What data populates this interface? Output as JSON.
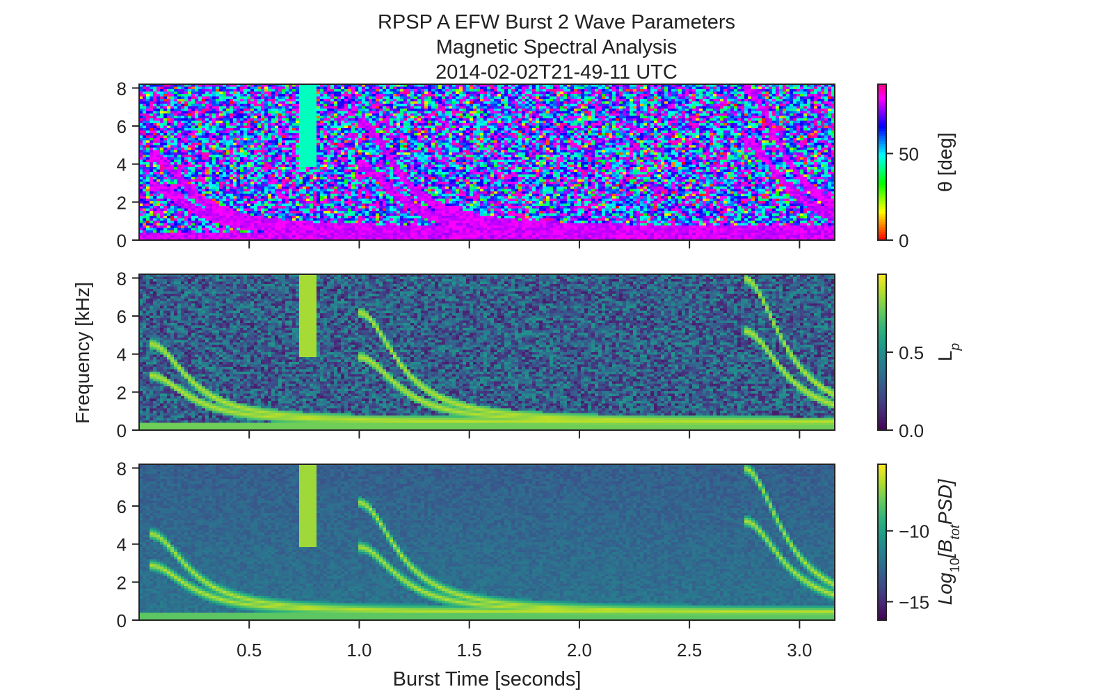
{
  "figure": {
    "title_lines": [
      "RPSP A EFW Burst 2 Wave Parameters",
      "Magnetic Spectral Analysis",
      "2014-02-02T21-49-11 UTC"
    ],
    "shared_ylabel": "Frequency [kHz]",
    "shared_xlabel": "Burst Time [seconds]"
  },
  "chart_data": [
    {
      "type": "heatmap",
      "name": "theta",
      "colormap": "hsv",
      "colorbar_label": "θ [deg]",
      "colorbar_ticks": [
        "0",
        "50"
      ],
      "colorbar_tick_values": [
        0,
        50
      ],
      "colorbar_range": [
        0,
        90
      ],
      "x_range": [
        0.0,
        3.16
      ],
      "ylim": [
        0,
        8.2
      ],
      "yticks": [
        "0",
        "2",
        "4",
        "6",
        "8"
      ],
      "xticks": [
        "0.5",
        "1.0",
        "1.5",
        "2.0",
        "2.5",
        "3.0"
      ],
      "xtick_labels_visible": false
    },
    {
      "type": "heatmap",
      "name": "Lp",
      "colormap": "viridis",
      "colorbar_label": "L",
      "colorbar_label_sub": "p",
      "colorbar_ticks": [
        "0.0",
        "0.5"
      ],
      "colorbar_tick_values": [
        0.0,
        0.5
      ],
      "colorbar_range": [
        0,
        1
      ],
      "x_range": [
        0.0,
        3.16
      ],
      "ylim": [
        0,
        8.2
      ],
      "yticks": [
        "0",
        "2",
        "4",
        "6",
        "8"
      ],
      "xticks": [
        "0.5",
        "1.0",
        "1.5",
        "2.0",
        "2.5",
        "3.0"
      ],
      "xtick_labels_visible": false
    },
    {
      "type": "heatmap",
      "name": "psd",
      "colormap": "viridis",
      "colorbar_label_parts": [
        "Log",
        "10",
        "[B",
        "tot",
        "PSD]"
      ],
      "colorbar_ticks": [
        "−10",
        "−15"
      ],
      "colorbar_tick_values": [
        -10,
        -15
      ],
      "colorbar_range": [
        -16.3,
        -5.3
      ],
      "x_range": [
        0.0,
        3.16
      ],
      "ylim": [
        0,
        8.2
      ],
      "yticks": [
        "0",
        "2",
        "4",
        "6",
        "8"
      ],
      "xticks": [
        "0.5",
        "1.0",
        "1.5",
        "2.0",
        "2.5",
        "3.0"
      ],
      "xtick_labels_visible": true
    }
  ]
}
